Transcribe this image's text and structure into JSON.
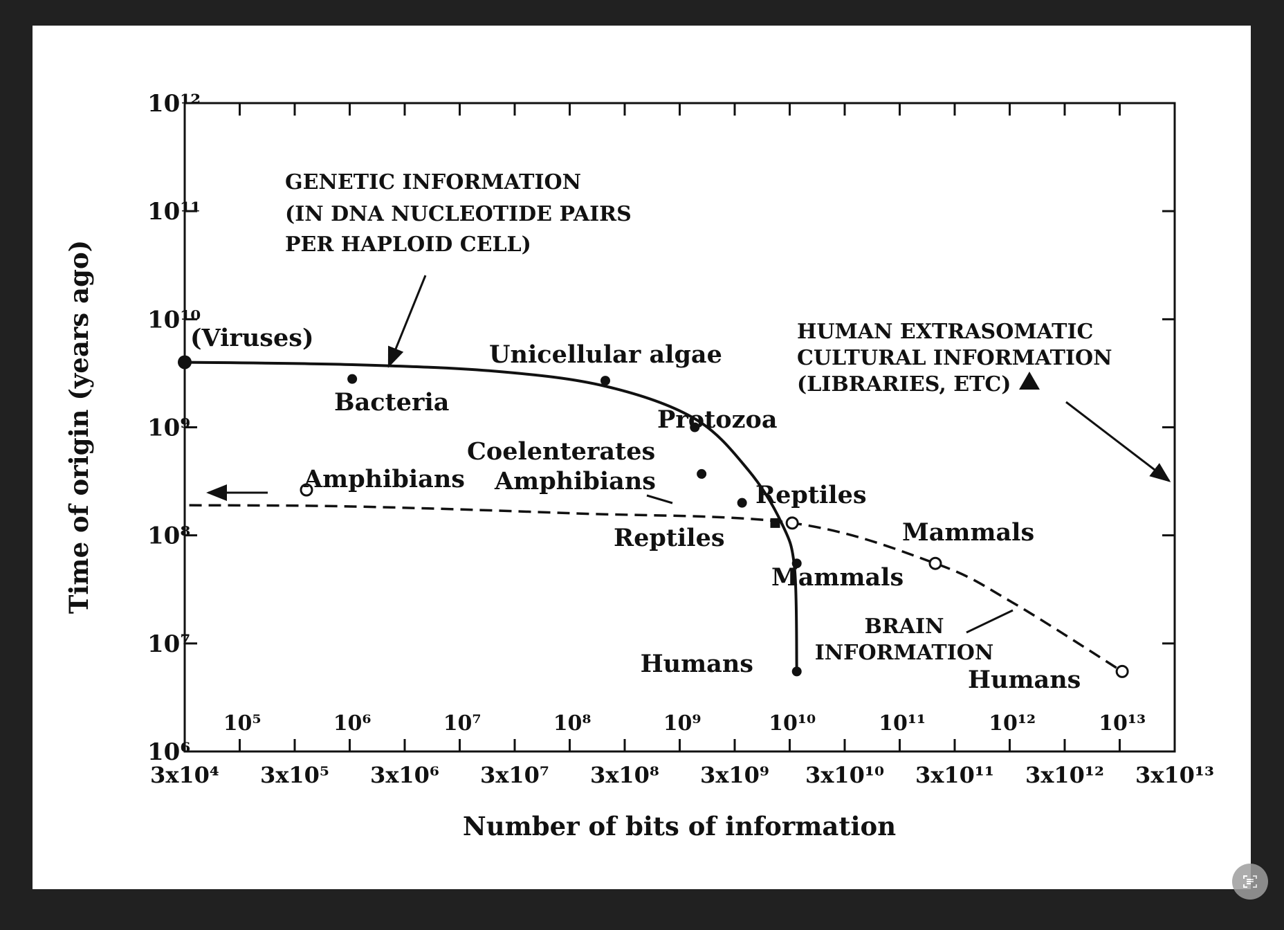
{
  "chart_data": {
    "type": "line",
    "title": "",
    "xlabel": "Number of bits of information",
    "ylabel": "Time of origin (years ago)",
    "x_scale": "log",
    "y_scale": "log",
    "xlim": [
      30000,
      30000000000000
    ],
    "ylim": [
      1000000,
      1000000000000
    ],
    "x_ticks_bottom": [
      "3x10⁴",
      "3x10⁵",
      "3x10⁶",
      "3x10⁷",
      "3x10⁸",
      "3x10⁹",
      "3x10¹⁰",
      "3x10¹¹",
      "3x10¹²",
      "3x10¹³"
    ],
    "x_ticks_top": [
      "10⁵",
      "10⁶",
      "10⁷",
      "10⁸",
      "10⁹",
      "10¹⁰",
      "10¹¹",
      "10¹²",
      "10¹³"
    ],
    "y_ticks": [
      "10⁶",
      "10⁷",
      "10⁸",
      "10⁹",
      "10¹⁰",
      "10¹¹",
      "10¹²"
    ],
    "series": [
      {
        "name": "GENETIC INFORMATION (IN DNA NUCLEOTIDE PAIRS PER HAPLOID CELL)",
        "style": "solid",
        "points": [
          {
            "label": "(Viruses)",
            "x": 30000,
            "y": 4000000000
          },
          {
            "label": "Bacteria",
            "x": 1000000,
            "y": 2800000000
          },
          {
            "label": "Unicellular algae",
            "x": 200000000,
            "y": 2700000000
          },
          {
            "label": "Protozoa",
            "x": 1300000000,
            "y": 1000000000
          },
          {
            "label": "Coelenterates",
            "x": 1500000000,
            "y": 370000000
          },
          {
            "label": "Amphibians",
            "x": 3500000000,
            "y": 200000000
          },
          {
            "label": "Reptiles",
            "x": 7000000000,
            "y": 130000000
          },
          {
            "label": "Mammals",
            "x": 11000000000,
            "y": 55000000
          },
          {
            "label": "Humans",
            "x": 11000000000,
            "y": 5500000
          }
        ]
      },
      {
        "name": "BRAIN INFORMATION",
        "style": "dashed",
        "points": [
          {
            "label": "Amphibians",
            "x": 300000,
            "y": 190000000
          },
          {
            "label": "Reptiles",
            "x": 10000000000,
            "y": 130000000
          },
          {
            "label": "Mammals",
            "x": 200000000000,
            "y": 55000000
          },
          {
            "label": "Humans",
            "x": 10000000000000,
            "y": 5500000
          }
        ]
      }
    ],
    "annotations": {
      "genetic": [
        "GENETIC INFORMATION",
        "(IN DNA NUCLEOTIDE PAIRS",
        "PER HAPLOID CELL)"
      ],
      "brain": [
        "BRAIN",
        "INFORMATION"
      ],
      "cultural": [
        "HUMAN EXTRASOMATIC",
        "CULTURAL INFORMATION",
        "(LIBRARIES, ETC)"
      ],
      "viruses": "(Viruses)",
      "bacteria": "Bacteria",
      "algae": "Unicellular algae",
      "protozoa": "Protozoa",
      "coelenterates": "Coelenterates",
      "amphibians_genetic": "Amphibians",
      "reptiles_genetic": "Reptiles",
      "mammals_genetic": "Mammals",
      "humans_genetic": "Humans",
      "amphibians_brain": "Amphibians",
      "reptiles_brain": "Reptiles",
      "mammals_brain": "Mammals",
      "humans_brain": "Humans"
    }
  },
  "icons": {
    "lens": "text-scan-icon"
  }
}
